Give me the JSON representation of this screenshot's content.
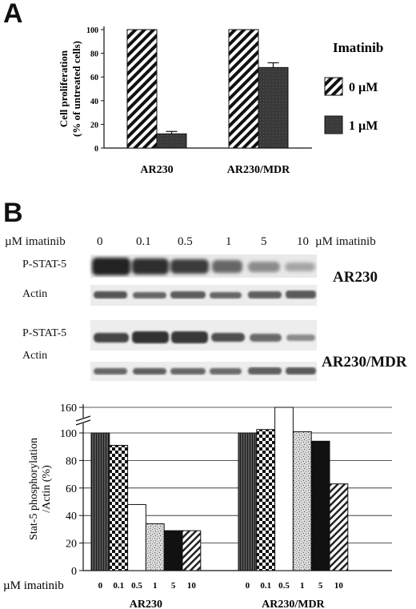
{
  "panel_a": {
    "letter": "A"
  },
  "panel_b": {
    "letter": "B",
    "blot": {
      "concentration_row_label": "µM imatinib",
      "concentrations": [
        "0",
        "0.1",
        "0.5",
        "1",
        "5",
        "10"
      ],
      "concentration_unit_label": "µM imatinib",
      "groups": [
        {
          "name": "AR230",
          "rows": [
            "P-STAT-5",
            "Actin"
          ]
        },
        {
          "name": "AR230/MDR",
          "rows": [
            "P-STAT-5",
            "Actin"
          ]
        }
      ]
    }
  },
  "chart_data": [
    {
      "type": "bar",
      "panel": "A",
      "categories": [
        "AR230",
        "AR230/MDR"
      ],
      "series": [
        {
          "name": "0 µM",
          "values": [
            100,
            100
          ],
          "pattern": "diagonal-hatch"
        },
        {
          "name": "1 µM",
          "values": [
            12,
            68
          ],
          "errors": [
            2,
            4
          ],
          "pattern": "dark"
        }
      ],
      "ylabel": "Cell proliferation\n(% of untreated cells)",
      "ylim": [
        0,
        100
      ],
      "yticks": [
        0,
        20,
        40,
        60,
        80,
        100
      ],
      "legend_title": "Imatinib",
      "legend_position": "right",
      "grid": false
    },
    {
      "type": "bar",
      "panel": "B",
      "groups": [
        "AR230",
        "AR230/MDR"
      ],
      "x_row_label": "µM imatinib",
      "categories": [
        "0",
        "0.1",
        "0.5",
        "1",
        "5",
        "10"
      ],
      "series": [
        {
          "name": "AR230",
          "values": [
            100,
            91,
            48,
            34,
            29,
            29
          ]
        },
        {
          "name": "AR230/MDR",
          "values": [
            100,
            108,
            160,
            103,
            94,
            63
          ]
        }
      ],
      "ylabel": "Stat-5 phosphorylation\n/Actin (%)",
      "ylim": [
        0,
        160
      ],
      "yticks": [
        0,
        20,
        40,
        60,
        80,
        100,
        160
      ],
      "axis_break": [
        100,
        160
      ],
      "grid": true,
      "bar_patterns": [
        "vertical-lines",
        "checker",
        "white",
        "speckle",
        "black",
        "diagonal-hatch"
      ]
    }
  ]
}
